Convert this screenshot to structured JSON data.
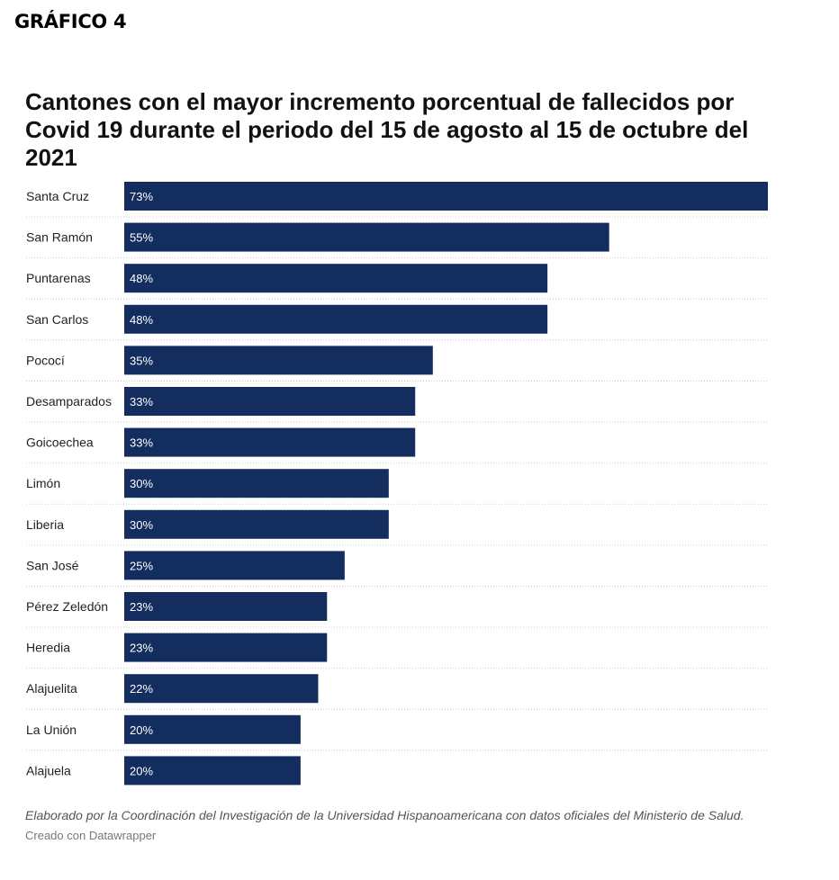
{
  "header": {
    "figure_label": "GRÁFICO 4"
  },
  "chart_data": {
    "type": "bar",
    "orientation": "horizontal",
    "title": "Cantones con el mayor incremento porcentual de fallecidos por Covid 19 durante el periodo del 15 de agosto al 15 de octubre del 2021",
    "categories": [
      "Santa Cruz",
      "San Ramón",
      "Puntarenas",
      "San Carlos",
      "Pococí",
      "Desamparados",
      "Goicoechea",
      "Limón",
      "Liberia",
      "San José",
      "Pérez Zeledón",
      "Heredia",
      "Alajuelita",
      "La Unión",
      "Alajuela"
    ],
    "values": [
      73,
      55,
      48,
      48,
      35,
      33,
      33,
      30,
      30,
      25,
      23,
      23,
      22,
      20,
      20
    ],
    "value_labels": [
      "73%",
      "55%",
      "48%",
      "48%",
      "35%",
      "33%",
      "33%",
      "30%",
      "30%",
      "25%",
      "23%",
      "23%",
      "22%",
      "20%",
      "20%"
    ],
    "xlim": [
      0,
      73
    ],
    "grid": false,
    "colors": {
      "bar": "#132d5e",
      "separator": "#cccccc"
    }
  },
  "footer": {
    "note": "Elaborado por la Coordinación del Investigación de la Universidad Hispanoamericana con datos oficiales del Ministerio de Salud.",
    "credit": "Creado con Datawrapper"
  }
}
